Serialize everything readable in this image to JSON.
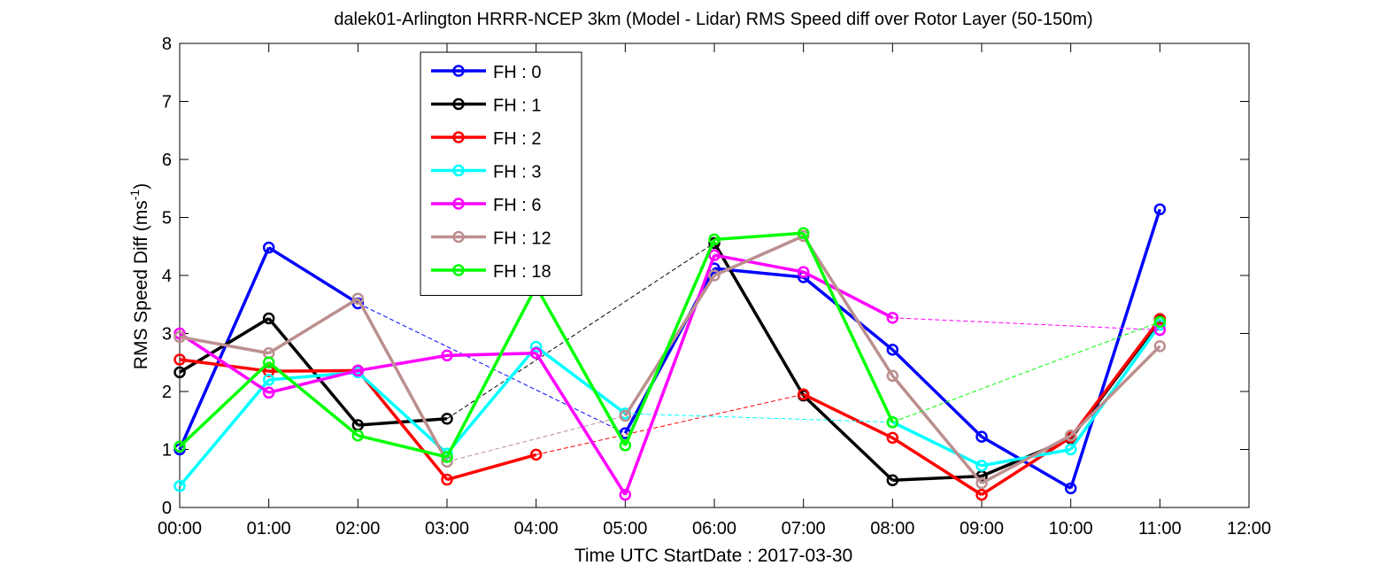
{
  "chart_data": {
    "type": "line",
    "title": "dalek01-Arlington HRRR-NCEP 3km (Model - Lidar) RMS Speed diff over Rotor Layer (50-150m)",
    "xlabel": "Time UTC    StartDate : 2017-03-30",
    "ylabel_main": "RMS Speed Diff (ms",
    "ylabel_sup": "-1",
    "ylabel_close": ")",
    "xlim": [
      0,
      12
    ],
    "ylim": [
      0,
      8
    ],
    "x_ticks": [
      0,
      1,
      2,
      3,
      4,
      5,
      6,
      7,
      8,
      9,
      10,
      11,
      12
    ],
    "x_tick_labels": [
      "00:00",
      "01:00",
      "02:00",
      "03:00",
      "04:00",
      "05:00",
      "06:00",
      "07:00",
      "08:00",
      "09:00",
      "10:00",
      "11:00",
      "12:00"
    ],
    "y_ticks": [
      0,
      1,
      2,
      3,
      4,
      5,
      6,
      7,
      8
    ],
    "y_tick_labels": [
      "0",
      "1",
      "2",
      "3",
      "4",
      "5",
      "6",
      "7",
      "8"
    ],
    "grid": false,
    "legend_position": "top-left",
    "marker": "circle",
    "series": [
      {
        "name": "FH : 0",
        "color": "#0000ff",
        "points": [
          [
            0,
            1.0
          ],
          [
            1,
            4.48
          ],
          [
            2,
            3.52
          ],
          [
            5,
            1.28
          ],
          [
            6,
            4.12
          ],
          [
            7,
            3.97
          ],
          [
            8,
            2.72
          ],
          [
            9,
            1.22
          ],
          [
            10,
            0.33
          ],
          [
            11,
            5.14
          ]
        ]
      },
      {
        "name": "FH : 1",
        "color": "#000000",
        "points": [
          [
            0,
            2.33
          ],
          [
            1,
            3.26
          ],
          [
            2,
            1.42
          ],
          [
            3,
            1.53
          ],
          [
            6,
            4.56
          ],
          [
            7,
            1.93
          ],
          [
            8,
            0.47
          ],
          [
            9,
            0.54
          ],
          [
            10,
            1.19
          ],
          [
            11,
            3.22
          ]
        ]
      },
      {
        "name": "FH : 2",
        "color": "#ff0000",
        "points": [
          [
            0,
            2.55
          ],
          [
            1,
            2.35
          ],
          [
            2,
            2.36
          ],
          [
            3,
            0.48
          ],
          [
            4,
            0.91
          ],
          [
            7,
            1.95
          ],
          [
            8,
            1.2
          ],
          [
            9,
            0.22
          ],
          [
            10,
            1.21
          ],
          [
            11,
            3.25
          ]
        ]
      },
      {
        "name": "FH : 3",
        "color": "#00ffff",
        "points": [
          [
            0,
            0.37
          ],
          [
            1,
            2.2
          ],
          [
            2,
            2.33
          ],
          [
            3,
            0.93
          ],
          [
            4,
            2.77
          ],
          [
            5,
            1.62
          ],
          [
            8,
            1.47
          ],
          [
            9,
            0.72
          ],
          [
            10,
            1.0
          ],
          [
            11,
            3.15
          ]
        ]
      },
      {
        "name": "FH : 6",
        "color": "#ff00ff",
        "points": [
          [
            0,
            3.0
          ],
          [
            1,
            1.98
          ],
          [
            2,
            2.36
          ],
          [
            3,
            2.62
          ],
          [
            4,
            2.66
          ],
          [
            5,
            0.22
          ],
          [
            6,
            4.35
          ],
          [
            7,
            4.06
          ],
          [
            8,
            3.27
          ],
          [
            11,
            3.06
          ]
        ]
      },
      {
        "name": "FH : 12",
        "color": "#bc8f8f",
        "points": [
          [
            0,
            2.94
          ],
          [
            1,
            2.66
          ],
          [
            2,
            3.6
          ],
          [
            3,
            0.79
          ],
          [
            5,
            1.58
          ],
          [
            6,
            4.0
          ],
          [
            7,
            4.68
          ],
          [
            8,
            2.27
          ],
          [
            9,
            0.42
          ],
          [
            10,
            1.24
          ],
          [
            11,
            2.78
          ]
        ]
      },
      {
        "name": "FH : 18",
        "color": "#00ff00",
        "points": [
          [
            0,
            1.05
          ],
          [
            1,
            2.5
          ],
          [
            2,
            1.24
          ],
          [
            3,
            0.87
          ],
          [
            4,
            3.81
          ],
          [
            5,
            1.07
          ],
          [
            6,
            4.62
          ],
          [
            7,
            4.73
          ],
          [
            8,
            1.47
          ],
          [
            11,
            3.2
          ]
        ]
      }
    ]
  }
}
